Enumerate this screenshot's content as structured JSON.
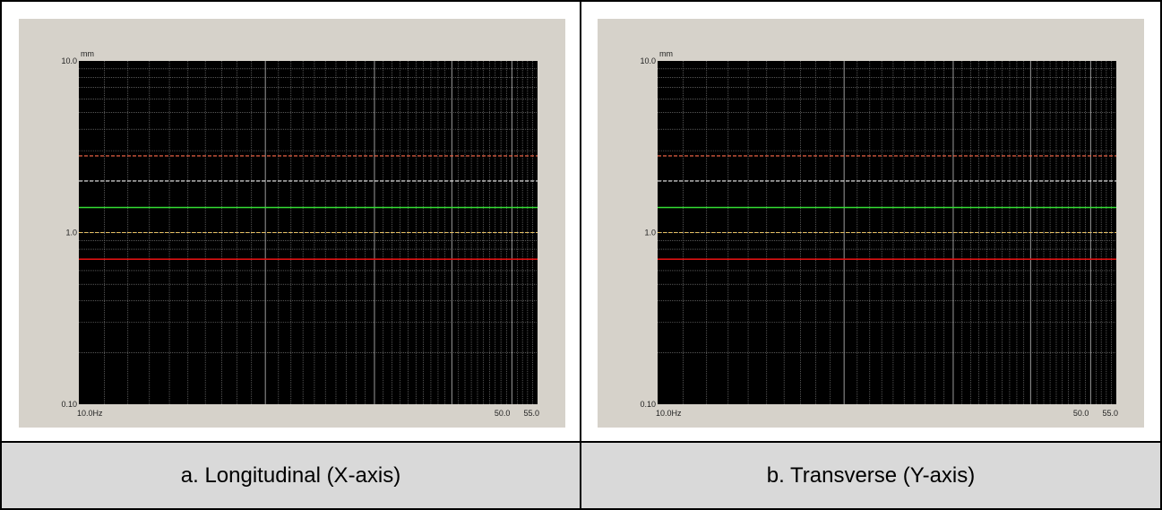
{
  "colors": {
    "panel": "#d6d2ca",
    "plot": "#000000",
    "grid": "#8a8a8a",
    "green": "#33dd33",
    "red": "#dd1111",
    "white_dashed": "#f4f4f4",
    "yellow_dashed": "#e8c060",
    "orange_dashed": "#ff6a4a",
    "caption_bg": "#d9d9d9"
  },
  "captions": [
    "a.  Longitudinal (X-axis)",
    "b.  Transverse (Y-axis)"
  ],
  "chart_data": [
    {
      "type": "line",
      "caption": "a.  Longitudinal (X-axis)",
      "y_unit_label": "mm",
      "x_unit_label": "Hz",
      "xscale": "log",
      "yscale": "log",
      "xlim": [
        10.0,
        55.0
      ],
      "ylim": [
        0.1,
        10.0
      ],
      "x_tick_labels": [
        "10.0Hz",
        "50.0",
        "55.0"
      ],
      "y_tick_labels": [
        "10.0",
        "1.0",
        "0.10"
      ],
      "grid": true,
      "series": [
        {
          "color": "#33dd33",
          "style": "solid",
          "x": [
            10.0,
            55.0
          ],
          "y": [
            1.4,
            1.4
          ]
        },
        {
          "color": "#dd1111",
          "style": "solid",
          "x": [
            10.0,
            55.0
          ],
          "y": [
            0.7,
            0.7
          ]
        },
        {
          "color": "#f4f4f4",
          "style": "dashed",
          "x": [
            10.0,
            55.0
          ],
          "y": [
            2.0,
            2.0
          ]
        },
        {
          "color": "#e8c060",
          "style": "dashed",
          "x": [
            10.0,
            55.0
          ],
          "y": [
            1.0,
            1.0
          ]
        },
        {
          "color": "#ff6a4a",
          "style": "dashed",
          "x": [
            10.0,
            55.0
          ],
          "y": [
            2.8,
            2.8
          ]
        }
      ]
    },
    {
      "type": "line",
      "caption": "b.  Transverse (Y-axis)",
      "y_unit_label": "mm",
      "x_unit_label": "Hz",
      "xscale": "log",
      "yscale": "log",
      "xlim": [
        10.0,
        55.0
      ],
      "ylim": [
        0.1,
        10.0
      ],
      "x_tick_labels": [
        "10.0Hz",
        "50.0",
        "55.0"
      ],
      "y_tick_labels": [
        "10.0",
        "1.0",
        "0.10"
      ],
      "grid": true,
      "series": [
        {
          "color": "#33dd33",
          "style": "solid",
          "x": [
            10.0,
            55.0
          ],
          "y": [
            1.4,
            1.4
          ]
        },
        {
          "color": "#dd1111",
          "style": "solid",
          "x": [
            10.0,
            55.0
          ],
          "y": [
            0.7,
            0.7
          ]
        },
        {
          "color": "#f4f4f4",
          "style": "dashed",
          "x": [
            10.0,
            55.0
          ],
          "y": [
            2.0,
            2.0
          ]
        },
        {
          "color": "#e8c060",
          "style": "dashed",
          "x": [
            10.0,
            55.0
          ],
          "y": [
            1.0,
            1.0
          ]
        },
        {
          "color": "#ff6a4a",
          "style": "dashed",
          "x": [
            10.0,
            55.0
          ],
          "y": [
            2.8,
            2.8
          ]
        }
      ]
    }
  ]
}
